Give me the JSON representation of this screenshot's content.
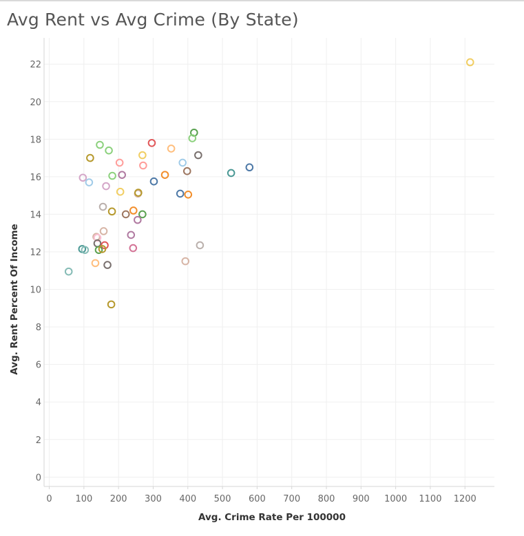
{
  "chart_data": {
    "type": "scatter",
    "title": "Avg Rent vs Avg Crime (By State)",
    "xlabel": "Avg. Crime Rate Per 100000",
    "ylabel": "Avg. Rent Percent Of Income",
    "xlim": [
      -15,
      1285
    ],
    "ylim": [
      -0.5,
      23.4
    ],
    "x_ticks": [
      0,
      100,
      200,
      300,
      400,
      500,
      600,
      700,
      800,
      900,
      1000,
      1100,
      1200
    ],
    "y_ticks": [
      0,
      2,
      4,
      6,
      8,
      10,
      12,
      14,
      16,
      18,
      20,
      22
    ],
    "grid": true,
    "legend": "none",
    "marker": "hollow-circle",
    "points": [
      {
        "x": 1215,
        "y": 22.1,
        "color": "#f1ce63"
      },
      {
        "x": 418,
        "y": 18.35,
        "color": "#59a14f"
      },
      {
        "x": 413,
        "y": 18.05,
        "color": "#8cd17d"
      },
      {
        "x": 296,
        "y": 17.8,
        "color": "#e15759"
      },
      {
        "x": 352,
        "y": 17.5,
        "color": "#ffbe7d"
      },
      {
        "x": 146,
        "y": 17.7,
        "color": "#8cd17d"
      },
      {
        "x": 172,
        "y": 17.4,
        "color": "#8cd17d"
      },
      {
        "x": 430,
        "y": 17.15,
        "color": "#79706e"
      },
      {
        "x": 269,
        "y": 17.15,
        "color": "#f1ce63"
      },
      {
        "x": 118,
        "y": 17.0,
        "color": "#b6992d"
      },
      {
        "x": 203,
        "y": 16.75,
        "color": "#ff9d9a"
      },
      {
        "x": 385,
        "y": 16.75,
        "color": "#a0cbe8"
      },
      {
        "x": 271,
        "y": 16.6,
        "color": "#ff9d9a"
      },
      {
        "x": 578,
        "y": 16.5,
        "color": "#4e79a7"
      },
      {
        "x": 398,
        "y": 16.3,
        "color": "#9d7660"
      },
      {
        "x": 525,
        "y": 16.2,
        "color": "#499894"
      },
      {
        "x": 210,
        "y": 16.1,
        "color": "#b07aa1"
      },
      {
        "x": 334,
        "y": 16.1,
        "color": "#f28e2b"
      },
      {
        "x": 182,
        "y": 16.05,
        "color": "#8cd17d"
      },
      {
        "x": 97,
        "y": 15.95,
        "color": "#d4a6c8"
      },
      {
        "x": 302,
        "y": 15.75,
        "color": "#4e79a7"
      },
      {
        "x": 115,
        "y": 15.7,
        "color": "#a0cbe8"
      },
      {
        "x": 164,
        "y": 15.5,
        "color": "#d4a6c8"
      },
      {
        "x": 205,
        "y": 15.2,
        "color": "#f1ce63"
      },
      {
        "x": 256,
        "y": 15.1,
        "color": "#d7b5a6"
      },
      {
        "x": 257,
        "y": 15.15,
        "color": "#b6992d"
      },
      {
        "x": 378,
        "y": 15.1,
        "color": "#4e79a7"
      },
      {
        "x": 401,
        "y": 15.05,
        "color": "#f28e2b"
      },
      {
        "x": 155,
        "y": 14.4,
        "color": "#bab0ac"
      },
      {
        "x": 181,
        "y": 14.15,
        "color": "#b6992d"
      },
      {
        "x": 243,
        "y": 14.2,
        "color": "#f28e2b"
      },
      {
        "x": 221,
        "y": 14.0,
        "color": "#9d7660"
      },
      {
        "x": 269,
        "y": 14.0,
        "color": "#59a14f"
      },
      {
        "x": 255,
        "y": 13.7,
        "color": "#b07aa1"
      },
      {
        "x": 157,
        "y": 13.1,
        "color": "#d7b5a6"
      },
      {
        "x": 236,
        "y": 12.9,
        "color": "#b07aa1"
      },
      {
        "x": 136,
        "y": 12.8,
        "color": "#d7b5a6"
      },
      {
        "x": 139,
        "y": 12.75,
        "color": "#fabfd2"
      },
      {
        "x": 139,
        "y": 12.45,
        "color": "#79706e"
      },
      {
        "x": 435,
        "y": 12.35,
        "color": "#bab0ac"
      },
      {
        "x": 160,
        "y": 12.35,
        "color": "#e15759"
      },
      {
        "x": 95,
        "y": 12.15,
        "color": "#499894"
      },
      {
        "x": 103,
        "y": 12.1,
        "color": "#86bcb6"
      },
      {
        "x": 143,
        "y": 12.1,
        "color": "#59a14f"
      },
      {
        "x": 153,
        "y": 12.15,
        "color": "#b6992d"
      },
      {
        "x": 242,
        "y": 12.2,
        "color": "#d37295"
      },
      {
        "x": 393,
        "y": 11.5,
        "color": "#d7b5a6"
      },
      {
        "x": 133,
        "y": 11.4,
        "color": "#ffbe7d"
      },
      {
        "x": 168,
        "y": 11.3,
        "color": "#79706e"
      },
      {
        "x": 56,
        "y": 10.95,
        "color": "#86bcb6"
      },
      {
        "x": 179,
        "y": 9.2,
        "color": "#b6992d"
      }
    ]
  }
}
